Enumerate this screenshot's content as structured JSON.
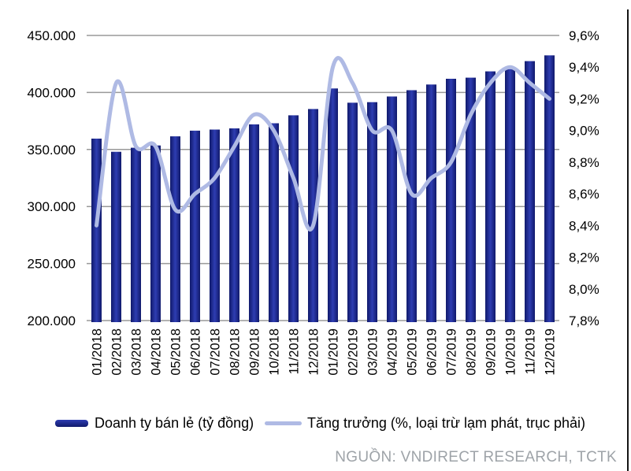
{
  "source_note": "NGUỒN: VNDIRECT RESEARCH, TCTK",
  "chart_data": {
    "type": "combo",
    "title": "",
    "categories": [
      "01/2018",
      "02/2018",
      "03/2018",
      "04/2018",
      "05/2018",
      "06/2018",
      "07/2018",
      "08/2018",
      "09/2018",
      "10/2018",
      "11/2018",
      "12/2018",
      "01/2019",
      "02/2019",
      "03/2019",
      "04/2019",
      "05/2019",
      "06/2019",
      "07/2019",
      "08/2019",
      "09/2019",
      "10/2019",
      "11/2019",
      "12/2019"
    ],
    "series": [
      {
        "name": "Doanh ty bán lẻ (tỷ đồng)",
        "type": "bar",
        "axis": "left",
        "values": [
          359500,
          348000,
          351500,
          353500,
          361500,
          366500,
          367500,
          368500,
          372000,
          373000,
          380000,
          385500,
          403500,
          391000,
          391500,
          396500,
          402000,
          407000,
          412000,
          413000,
          418500,
          420500,
          427500,
          432500
        ]
      },
      {
        "name": "Tăng trưởng (%, loại trừ lạm phát, trục phải)",
        "type": "line",
        "axis": "right",
        "values": [
          8.4,
          9.3,
          8.9,
          8.9,
          8.5,
          8.6,
          8.7,
          8.9,
          9.1,
          9.0,
          8.7,
          8.4,
          9.4,
          9.3,
          9.0,
          9.0,
          8.6,
          8.7,
          8.8,
          9.1,
          9.3,
          9.4,
          9.3,
          9.2
        ]
      }
    ],
    "left_axis": {
      "min": 200000,
      "max": 450000,
      "step": 50000,
      "tick_labels": [
        "450.000",
        "400.000",
        "350.000",
        "300.000",
        "250.000",
        "200.000"
      ]
    },
    "right_axis": {
      "min": 7.8,
      "max": 9.6,
      "step": 0.2,
      "tick_labels": [
        "9,6%",
        "9,4%",
        "9,2%",
        "9,0%",
        "8,8%",
        "8,6%",
        "8,4%",
        "8,2%",
        "8,0%",
        "7,8%"
      ]
    },
    "grid": true,
    "legend_position": "bottom",
    "colors": {
      "bar_edge": "#10196B",
      "bar_mid": "#2E3DB2",
      "line": "#AFBAE4",
      "grid": "#999999",
      "axis_text": "#000000",
      "source_text": "#9EA3A8"
    }
  }
}
